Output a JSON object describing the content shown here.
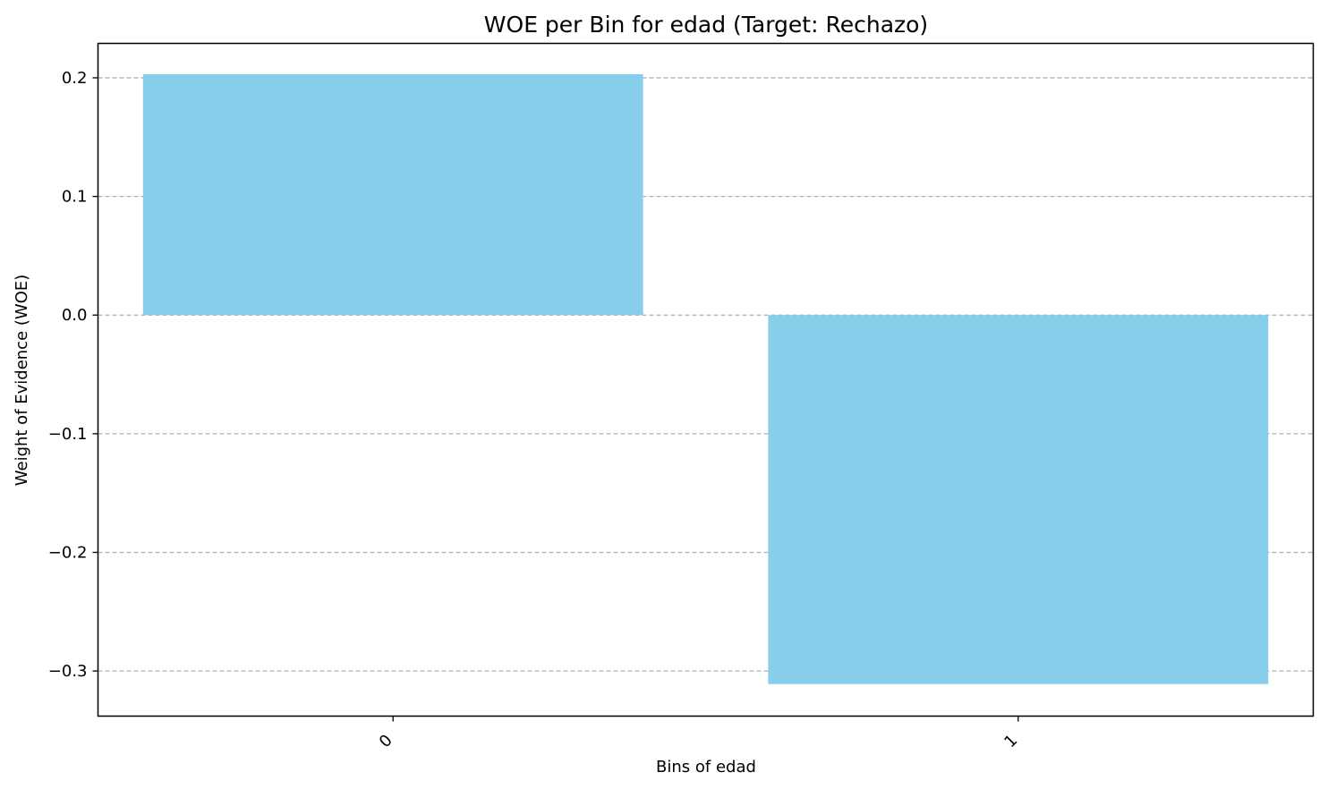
{
  "chart_data": {
    "type": "bar",
    "title": "WOE per Bin for edad (Target: Rechazo)",
    "xlabel": "Bins of edad",
    "ylabel": "Weight of Evidence (WOE)",
    "categories": [
      "0",
      "1"
    ],
    "values": [
      0.203,
      -0.311
    ],
    "ylim": [
      -0.338,
      0.229
    ],
    "yticks": [
      0.2,
      0.1,
      0.0,
      -0.1,
      -0.2,
      -0.3
    ],
    "ytick_labels": [
      "0.2",
      "0.1",
      "0.0",
      "−0.1",
      "−0.2",
      "−0.3"
    ],
    "grid": "y-dashed",
    "colors": {
      "bar": "#87ceeb",
      "grid": "#b0b0b0",
      "axis": "#000000"
    }
  }
}
